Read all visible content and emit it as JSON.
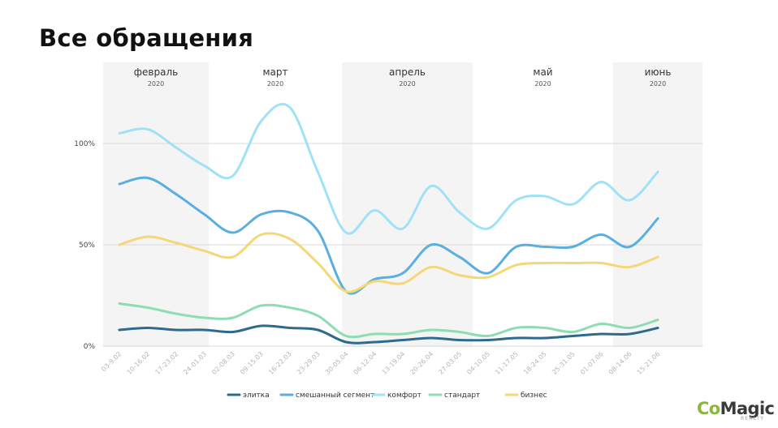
{
  "title": "Все обращения",
  "logo": {
    "part1": "Co",
    "part2": "Magic",
    "sub": "REALTY"
  },
  "colors": {
    "band": "#f4f4f4",
    "grid": "#d9d9d9",
    "axis_text": "#444444",
    "tick_text": "#b5b5b5"
  },
  "chart_data": {
    "type": "line",
    "title": "Все обращения",
    "xlabel": "",
    "ylabel": "",
    "ylim": [
      0,
      125
    ],
    "yticks": [
      {
        "value": 0,
        "label": "0%"
      },
      {
        "value": 50,
        "label": "50%"
      },
      {
        "value": 100,
        "label": "100%"
      }
    ],
    "grid": true,
    "legend": "bottom",
    "months": [
      {
        "name": "февраль",
        "year": "2020",
        "shaded": true
      },
      {
        "name": "март",
        "year": "2020",
        "shaded": false
      },
      {
        "name": "апрель",
        "year": "2020",
        "shaded": true
      },
      {
        "name": "май",
        "year": "2020",
        "shaded": false
      },
      {
        "name": "июнь",
        "year": "2020",
        "shaded": true
      }
    ],
    "categories": [
      "03-9.02",
      "10-16.02",
      "17-23.02",
      "24-01.03",
      "02-08.03",
      "09-15.03",
      "16-22.03",
      "23-29.03",
      "30-05.04",
      "06-12.04",
      "13-19.04",
      "20-26.04",
      "27-03.05",
      "04-10.05",
      "11-17.05",
      "18-24.05",
      "25-31.05",
      "01-07.06",
      "08-14.06",
      "15-21.06"
    ],
    "series": [
      {
        "name": "элитка",
        "color": "#2e6a8e",
        "values": [
          8,
          9,
          8,
          8,
          7,
          10,
          9,
          8,
          2,
          2,
          3,
          4,
          3,
          3,
          4,
          4,
          5,
          6,
          6,
          9
        ]
      },
      {
        "name": "смешанный сегмент",
        "color": "#5aaee0",
        "values": [
          80,
          83,
          75,
          65,
          56,
          65,
          66,
          57,
          27,
          33,
          36,
          50,
          44,
          36,
          49,
          49,
          49,
          55,
          49,
          63
        ]
      },
      {
        "name": "комфорт",
        "color": "#9fe2f7",
        "values": [
          105,
          107,
          98,
          89,
          84,
          111,
          118,
          86,
          56,
          67,
          58,
          79,
          66,
          58,
          72,
          74,
          70,
          81,
          72,
          86
        ]
      },
      {
        "name": "стандарт",
        "color": "#8ddcb3",
        "values": [
          21,
          19,
          16,
          14,
          14,
          20,
          19,
          15,
          5,
          6,
          6,
          8,
          7,
          5,
          9,
          9,
          7,
          11,
          9,
          13
        ]
      },
      {
        "name": "бизнес",
        "color": "#f5d77a",
        "values": [
          50,
          54,
          51,
          47,
          44,
          55,
          53,
          41,
          27,
          32,
          31,
          39,
          35,
          34,
          40,
          41,
          41,
          41,
          39,
          44
        ]
      }
    ]
  }
}
